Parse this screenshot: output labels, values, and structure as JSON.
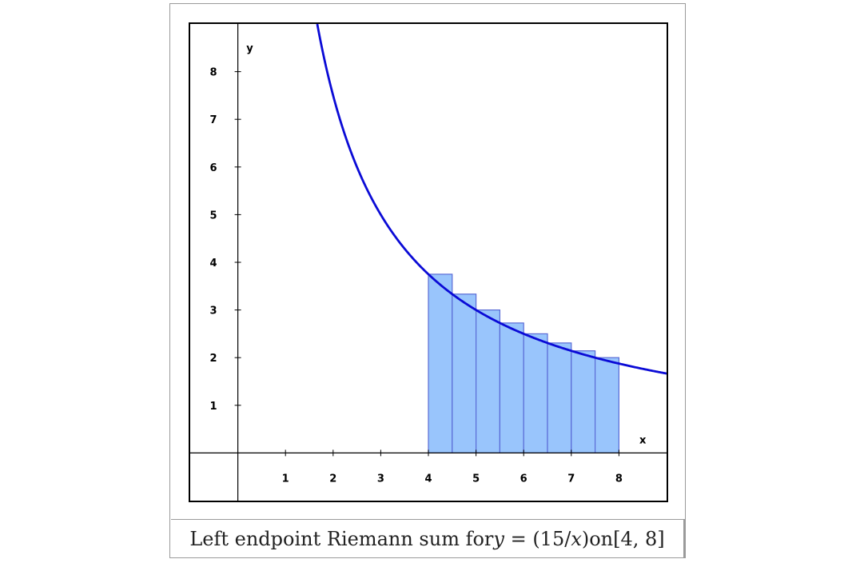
{
  "caption": {
    "prefix": "Left endpoint Riemann sum for ",
    "var_y": "y",
    "equals": " = (15/",
    "var_x": "x",
    "close": ")",
    "middle": " on ",
    "interval": "[4, 8]"
  },
  "colors": {
    "curve": "#0b0bd6",
    "rect_fill": "#99c5fc",
    "rect_stroke": "#5a6bd6",
    "axes": "#000000"
  },
  "chart_data": {
    "type": "area",
    "function": "y = 15/x",
    "xlabel": "x",
    "ylabel": "y",
    "xlim": [
      -1,
      9
    ],
    "ylim": [
      -1,
      9
    ],
    "x_ticks": [
      1,
      2,
      3,
      4,
      5,
      6,
      7,
      8
    ],
    "y_ticks": [
      1,
      2,
      3,
      4,
      5,
      6,
      7,
      8
    ],
    "grid": false,
    "riemann": {
      "method": "left endpoint",
      "interval": [
        4,
        8
      ],
      "n": 8,
      "left_x": [
        4,
        4.5,
        5,
        5.5,
        6,
        6.5,
        7,
        7.5
      ],
      "heights": [
        3.75,
        3.333,
        3.0,
        2.727,
        2.5,
        2.308,
        2.143,
        2.0
      ]
    }
  }
}
